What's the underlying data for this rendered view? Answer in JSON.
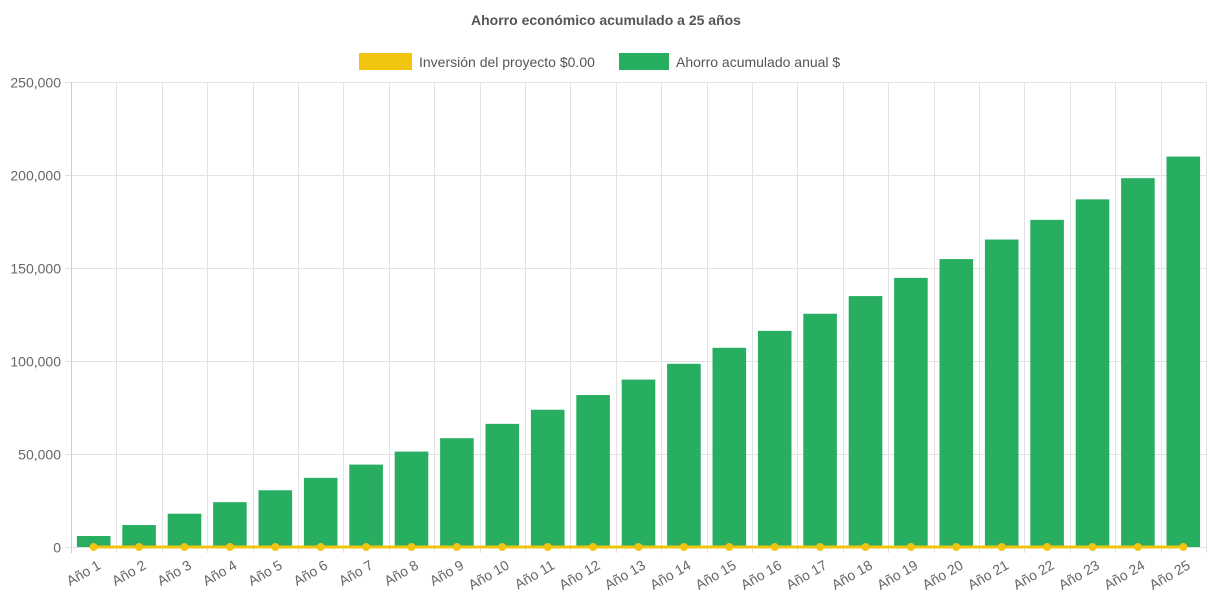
{
  "chart_data": {
    "type": "bar",
    "title": "Ahorro económico acumulado a 25 años",
    "xlabel": "",
    "ylabel": "",
    "ylim": [
      0,
      250000
    ],
    "y_ticks": [
      "0",
      "50,000",
      "100,000",
      "150,000",
      "200,000",
      "250,000"
    ],
    "y_tick_values": [
      0,
      50000,
      100000,
      150000,
      200000,
      250000
    ],
    "grid": true,
    "legend_position": "top-center",
    "categories": [
      "Año 1",
      "Año 2",
      "Año 3",
      "Año 4",
      "Año 5",
      "Año 6",
      "Año 7",
      "Año 8",
      "Año 9",
      "Año 10",
      "Año 11",
      "Año 12",
      "Año 13",
      "Año 14",
      "Año 15",
      "Año 16",
      "Año 17",
      "Año 18",
      "Año 19",
      "Año 20",
      "Año 21",
      "Año 22",
      "Año 23",
      "Año 24",
      "Año 25"
    ],
    "series": [
      {
        "name": "Inversión del proyecto $0.00",
        "type": "line",
        "color": "#f1c40f",
        "values": [
          0,
          0,
          0,
          0,
          0,
          0,
          0,
          0,
          0,
          0,
          0,
          0,
          0,
          0,
          0,
          0,
          0,
          0,
          0,
          0,
          0,
          0,
          0,
          0,
          0
        ]
      },
      {
        "name": "Ahorro acumulado anual $",
        "type": "bar",
        "color": "#27ae60",
        "values": [
          5900,
          11800,
          17900,
          24100,
          30500,
          37200,
          44300,
          51300,
          58500,
          66200,
          73800,
          81700,
          90000,
          98500,
          107100,
          116200,
          125400,
          134900,
          144700,
          154800,
          165300,
          175900,
          186900,
          198300,
          209900
        ]
      }
    ]
  }
}
